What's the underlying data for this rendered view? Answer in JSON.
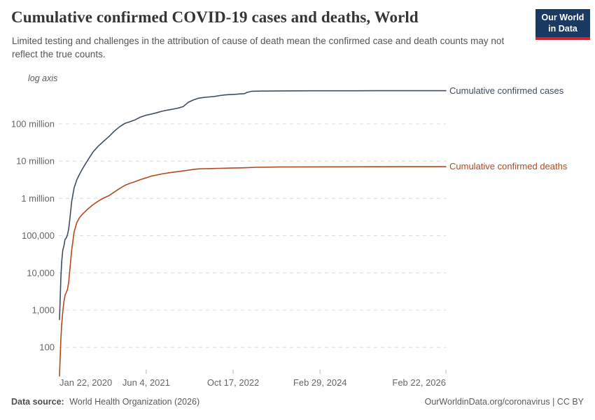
{
  "header": {
    "title": "Cumulative confirmed COVID-19 cases and deaths, World",
    "subtitle": "Limited testing and challenges in the attribution of cause of death mean the confirmed case and death counts may not reflect the true counts.",
    "logo": {
      "line1": "Our World",
      "line2": "in Data"
    }
  },
  "chart_data": {
    "type": "line",
    "title": "Cumulative confirmed COVID-19 cases and deaths, World",
    "grid": "dashed-horizontal",
    "legend_position": "line-end-labels",
    "y_axis": {
      "scale": "log",
      "scale_label": "log axis",
      "ticks": [
        {
          "value": 100000000,
          "label": "100 million"
        },
        {
          "value": 10000000,
          "label": "10 million"
        },
        {
          "value": 1000000,
          "label": "1 million"
        },
        {
          "value": 100000,
          "label": "100,000"
        },
        {
          "value": 10000,
          "label": "10,000"
        },
        {
          "value": 1000,
          "label": "1,000"
        },
        {
          "value": 100,
          "label": "100"
        }
      ]
    },
    "x_axis": {
      "start": "2020-01-22",
      "end": "2026-02-22",
      "ticks": [
        {
          "date": "2020-01-22",
          "label": "Jan 22, 2020",
          "anchor": "start"
        },
        {
          "date": "2021-06-04",
          "label": "Jun 4, 2021",
          "anchor": "middle"
        },
        {
          "date": "2022-10-17",
          "label": "Oct 17, 2022",
          "anchor": "middle"
        },
        {
          "date": "2024-02-29",
          "label": "Feb 29, 2024",
          "anchor": "middle"
        },
        {
          "date": "2026-02-22",
          "label": "Feb 22, 2026",
          "anchor": "end"
        }
      ]
    },
    "series": [
      {
        "name": "Cumulative confirmed cases",
        "color": "#3e4e63",
        "points": [
          [
            "2020-01-22",
            557
          ],
          [
            "2020-01-26",
            2014
          ],
          [
            "2020-01-30",
            7818
          ],
          [
            "2020-02-04",
            20630
          ],
          [
            "2020-02-10",
            40554
          ],
          [
            "2020-02-16",
            51857
          ],
          [
            "2020-02-23",
            78811
          ],
          [
            "2020-03-01",
            87137
          ],
          [
            "2020-03-08",
            105586
          ],
          [
            "2020-03-15",
            153648
          ],
          [
            "2020-03-22",
            292142
          ],
          [
            "2020-04-01",
            823626
          ],
          [
            "2020-04-15",
            1914916
          ],
          [
            "2020-05-01",
            3175207
          ],
          [
            "2020-05-15",
            4338658
          ],
          [
            "2020-06-01",
            6057853
          ],
          [
            "2020-06-15",
            7823289
          ],
          [
            "2020-07-01",
            10357662
          ],
          [
            "2020-07-15",
            13150645
          ],
          [
            "2020-08-01",
            17396943
          ],
          [
            "2020-09-01",
            25327098
          ],
          [
            "2020-10-01",
            33842281
          ],
          [
            "2020-11-01",
            45428731
          ],
          [
            "2020-12-01",
            62844837
          ],
          [
            "2021-01-01",
            83326479
          ],
          [
            "2021-02-01",
            102942987
          ],
          [
            "2021-03-01",
            113820168
          ],
          [
            "2021-04-01",
            128540982
          ],
          [
            "2021-05-01",
            151803822
          ],
          [
            "2021-06-01",
            170426245
          ],
          [
            "2021-07-01",
            182319261
          ],
          [
            "2021-08-01",
            197927303
          ],
          [
            "2021-09-01",
            218205951
          ],
          [
            "2021-10-01",
            233503524
          ],
          [
            "2021-11-01",
            246594715
          ],
          [
            "2021-12-01",
            263563622
          ],
          [
            "2022-01-01",
            288631129
          ],
          [
            "2022-01-15",
            326474000
          ],
          [
            "2022-02-01",
            380321615
          ],
          [
            "2022-03-01",
            437333859
          ],
          [
            "2022-04-01",
            489779062
          ],
          [
            "2022-05-01",
            513955910
          ],
          [
            "2022-06-01",
            529410287
          ],
          [
            "2022-07-01",
            546357444
          ],
          [
            "2022-08-01",
            577018226
          ],
          [
            "2022-09-01",
            599825400
          ],
          [
            "2022-10-01",
            612236677
          ],
          [
            "2022-11-01",
            623893894
          ],
          [
            "2022-12-01",
            639132486
          ],
          [
            "2022-12-20",
            649168000
          ],
          [
            "2023-01-05",
            700000000
          ],
          [
            "2023-02-01",
            753000000
          ],
          [
            "2023-04-01",
            762000000
          ],
          [
            "2023-07-01",
            767000000
          ],
          [
            "2024-01-01",
            773000000
          ],
          [
            "2024-07-01",
            775500000
          ],
          [
            "2025-01-01",
            777000000
          ],
          [
            "2025-07-01",
            777800000
          ],
          [
            "2026-02-22",
            778500000
          ]
        ]
      },
      {
        "name": "Cumulative confirmed deaths",
        "color": "#b5491d",
        "points": [
          [
            "2020-01-22",
            17
          ],
          [
            "2020-01-26",
            56
          ],
          [
            "2020-01-30",
            170
          ],
          [
            "2020-02-04",
            426
          ],
          [
            "2020-02-10",
            910
          ],
          [
            "2020-02-17",
            1775
          ],
          [
            "2020-02-24",
            2619
          ],
          [
            "2020-03-01",
            2977
          ],
          [
            "2020-03-08",
            3584
          ],
          [
            "2020-03-15",
            5735
          ],
          [
            "2020-03-22",
            12784
          ],
          [
            "2020-04-01",
            40598
          ],
          [
            "2020-04-15",
            125678
          ],
          [
            "2020-05-01",
            224172
          ],
          [
            "2020-05-15",
            297119
          ],
          [
            "2020-06-01",
            371166
          ],
          [
            "2020-07-01",
            508055
          ],
          [
            "2020-08-01",
            675060
          ],
          [
            "2020-09-01",
            844312
          ],
          [
            "2020-10-01",
            1011964
          ],
          [
            "2020-11-01",
            1185063
          ],
          [
            "2020-12-01",
            1461306
          ],
          [
            "2021-01-01",
            1831703
          ],
          [
            "2021-02-01",
            2236198
          ],
          [
            "2021-03-01",
            2526007
          ],
          [
            "2021-04-01",
            2809756
          ],
          [
            "2021-05-01",
            3184588
          ],
          [
            "2021-06-01",
            3541408
          ],
          [
            "2021-07-01",
            3948764
          ],
          [
            "2021-08-01",
            4218772
          ],
          [
            "2021-09-01",
            4526583
          ],
          [
            "2021-10-01",
            4777503
          ],
          [
            "2021-11-01",
            5000425
          ],
          [
            "2021-12-01",
            5232562
          ],
          [
            "2022-01-01",
            5456485
          ],
          [
            "2022-02-01",
            5691916
          ],
          [
            "2022-03-01",
            5974176
          ],
          [
            "2022-04-01",
            6172173
          ],
          [
            "2022-05-01",
            6253875
          ],
          [
            "2022-06-01",
            6302982
          ],
          [
            "2022-07-01",
            6342441
          ],
          [
            "2022-08-01",
            6396621
          ],
          [
            "2022-09-01",
            6462604
          ],
          [
            "2022-10-01",
            6520263
          ],
          [
            "2022-11-01",
            6566512
          ],
          [
            "2022-12-01",
            6611706
          ],
          [
            "2023-01-01",
            6670170
          ],
          [
            "2023-03-01",
            6827103
          ],
          [
            "2023-07-01",
            6945714
          ],
          [
            "2024-01-01",
            7010681
          ],
          [
            "2024-07-01",
            7056000
          ],
          [
            "2025-01-01",
            7080000
          ],
          [
            "2025-07-01",
            7092000
          ],
          [
            "2026-02-22",
            7100000
          ]
        ]
      }
    ]
  },
  "footer": {
    "source_label": "Data source:",
    "source_text": "World Health Organization (2026)",
    "right_text": "OurWorldinData.org/coronavirus | CC BY"
  },
  "colors": {
    "cases_line": "#3e4e63",
    "deaths_line": "#b5491d",
    "grid": "#dcdcdc",
    "axis_text": "#666666",
    "tick_mark": "#b8b8b8",
    "title_text": "#353535",
    "subtitle_text": "#565656",
    "logo_bg": "#1a3a63",
    "logo_stripe": "#d0232e",
    "footer_text": "#5b5b5b"
  }
}
